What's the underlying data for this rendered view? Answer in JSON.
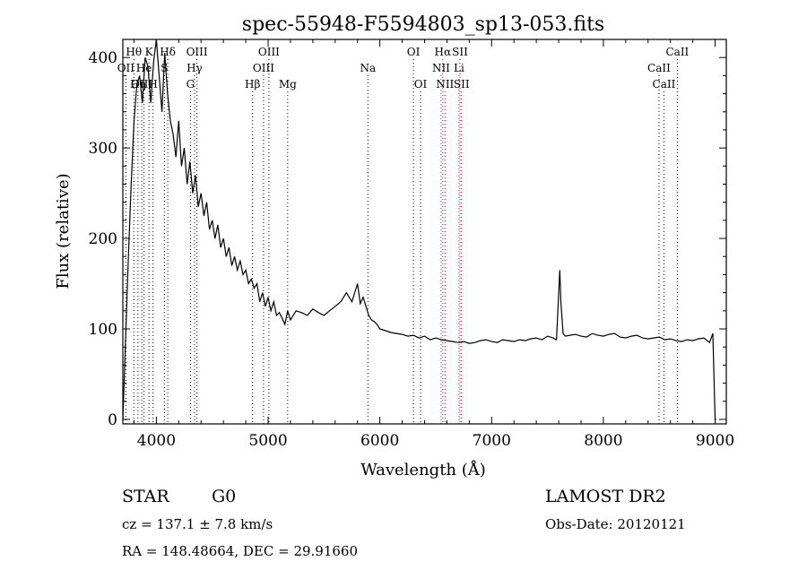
{
  "chart_data": {
    "type": "line",
    "title": "spec-55948-F5594803_sp13-053.fits",
    "xlabel": "Wavelength (Å)",
    "ylabel": "Flux (relative)",
    "xlim": [
      3700,
      9100
    ],
    "ylim": [
      -5,
      420
    ],
    "xticks": [
      "4000",
      "5000",
      "6000",
      "7000",
      "8000",
      "9000"
    ],
    "yticks": [
      "0",
      "100",
      "200",
      "300",
      "400"
    ],
    "xtick_values": [
      4000,
      5000,
      6000,
      7000,
      8000,
      9000
    ],
    "ytick_values": [
      0,
      100,
      200,
      300,
      400
    ],
    "grid": false,
    "series": [
      {
        "x": [
          3700,
          3725,
          3750,
          3775,
          3800,
          3825,
          3850,
          3875,
          3900,
          3925,
          3950,
          3975,
          4000,
          4025,
          4050,
          4075,
          4100,
          4125,
          4150,
          4175,
          4200,
          4225,
          4250,
          4275,
          4300,
          4325,
          4350,
          4375,
          4400,
          4425,
          4450,
          4475,
          4500,
          4525,
          4550,
          4575,
          4600,
          4625,
          4650,
          4675,
          4700,
          4725,
          4750,
          4775,
          4800,
          4825,
          4850,
          4875,
          4900,
          4925,
          4950,
          4975,
          5000,
          5025,
          5050,
          5075,
          5100,
          5125,
          5150,
          5175,
          5200,
          5250,
          5300,
          5350,
          5400,
          5450,
          5500,
          5550,
          5600,
          5650,
          5700,
          5750,
          5800,
          5825,
          5850,
          5875,
          5900,
          5925,
          5950,
          5975,
          6000,
          6050,
          6100,
          6150,
          6200,
          6250,
          6300,
          6350,
          6400,
          6450,
          6500,
          6550,
          6600,
          6650,
          6700,
          6750,
          6800,
          6850,
          6900,
          6950,
          7000,
          7050,
          7100,
          7150,
          7200,
          7250,
          7300,
          7350,
          7400,
          7450,
          7500,
          7550,
          7580,
          7600,
          7610,
          7620,
          7640,
          7660,
          7700,
          7750,
          7800,
          7850,
          7900,
          7950,
          8000,
          8050,
          8100,
          8150,
          8200,
          8250,
          8300,
          8350,
          8400,
          8450,
          8500,
          8550,
          8600,
          8650,
          8700,
          8750,
          8800,
          8850,
          8900,
          8950,
          8980,
          9000,
          9010
        ],
        "y": [
          0,
          90,
          180,
          260,
          330,
          370,
          380,
          350,
          400,
          390,
          350,
          395,
          420,
          380,
          340,
          405,
          360,
          330,
          315,
          290,
          330,
          280,
          300,
          260,
          285,
          250,
          270,
          235,
          250,
          225,
          240,
          210,
          220,
          200,
          215,
          190,
          200,
          180,
          190,
          170,
          180,
          165,
          175,
          160,
          165,
          150,
          155,
          145,
          150,
          130,
          140,
          125,
          135,
          120,
          130,
          115,
          118,
          112,
          105,
          120,
          110,
          120,
          118,
          115,
          122,
          118,
          115,
          120,
          125,
          130,
          140,
          130,
          150,
          128,
          135,
          125,
          115,
          110,
          108,
          105,
          100,
          98,
          96,
          95,
          94,
          92,
          93,
          90,
          92,
          88,
          90,
          88,
          87,
          86,
          85,
          86,
          84,
          85,
          87,
          88,
          86,
          85,
          88,
          87,
          86,
          88,
          87,
          89,
          90,
          88,
          92,
          90,
          88,
          140,
          165,
          130,
          95,
          92,
          93,
          94,
          92,
          91,
          95,
          93,
          92,
          94,
          95,
          91,
          90,
          92,
          93,
          90,
          89,
          90,
          91,
          88,
          89,
          87,
          86,
          88,
          87,
          89,
          90,
          85,
          95,
          0,
          0
        ]
      }
    ],
    "lines": [
      {
        "label": "Hθ",
        "x": 3798,
        "row": 0,
        "color": "#000000"
      },
      {
        "label": "K",
        "x": 3934,
        "row": 0,
        "color": "#000000"
      },
      {
        "label": "Hδ",
        "x": 4102,
        "row": 0,
        "color": "#000000"
      },
      {
        "label": "OII",
        "x": 3727,
        "row": 1,
        "color": "#000000"
      },
      {
        "label": "He",
        "x": 3889,
        "row": 1,
        "color": "#000000"
      },
      {
        "label": "S",
        "x": 4072,
        "row": 1,
        "color": "#000000"
      },
      {
        "label": "OIII",
        "x": 3869,
        "row": 2,
        "color": "#000000"
      },
      {
        "label": "Hη",
        "x": 3835,
        "row": 2,
        "color": "#000000"
      },
      {
        "label": "H",
        "x": 3970,
        "row": 2,
        "color": "#000000"
      },
      {
        "label": "OIII",
        "x": 4363,
        "row": 0,
        "color": "#000000"
      },
      {
        "label": "Hγ",
        "x": 4341,
        "row": 1,
        "color": "#000000"
      },
      {
        "label": "G",
        "x": 4305,
        "row": 2,
        "color": "#000000"
      },
      {
        "label": "OIII",
        "x": 5007,
        "row": 0,
        "color": "#000000"
      },
      {
        "label": "OIII",
        "x": 4959,
        "row": 1,
        "color": "#000000"
      },
      {
        "label": "Hβ",
        "x": 4861,
        "row": 2,
        "color": "#000000"
      },
      {
        "label": "Mg",
        "x": 5175,
        "row": 2,
        "color": "#000000"
      },
      {
        "label": "Na",
        "x": 5893,
        "row": 1,
        "color": "#000000"
      },
      {
        "label": "OI",
        "x": 6300,
        "row": 0,
        "color": "#000000"
      },
      {
        "label": "OI",
        "x": 6364,
        "row": 2,
        "color": "#000000"
      },
      {
        "label": "Hα",
        "x": 6563,
        "row": 0,
        "color": "#cc0000"
      },
      {
        "label": "SII",
        "x": 6717,
        "row": 0,
        "color": "#cc0000"
      },
      {
        "label": "NII",
        "x": 6548,
        "row": 1,
        "color": "#cc0000"
      },
      {
        "label": "Li",
        "x": 6708,
        "row": 1,
        "color": "#cc0000"
      },
      {
        "label": "NII",
        "x": 6583,
        "row": 2,
        "color": "#cc0000"
      },
      {
        "label": "SII",
        "x": 6731,
        "row": 2,
        "color": "#cc0000"
      },
      {
        "label": "CaII",
        "x": 8662,
        "row": 0,
        "color": "#000000"
      },
      {
        "label": "CaII",
        "x": 8498,
        "row": 1,
        "color": "#000000"
      },
      {
        "label": "CaII",
        "x": 8542,
        "row": 2,
        "color": "#000000"
      }
    ]
  },
  "info": {
    "object_type": "STAR",
    "subclass": "G0",
    "survey": "LAMOST DR2",
    "cz": "cz = 137.1 ± 7.8 km/s",
    "obs_date": "Obs-Date: 20120121",
    "coords": "RA = 148.48664, DEC =  29.91660"
  }
}
